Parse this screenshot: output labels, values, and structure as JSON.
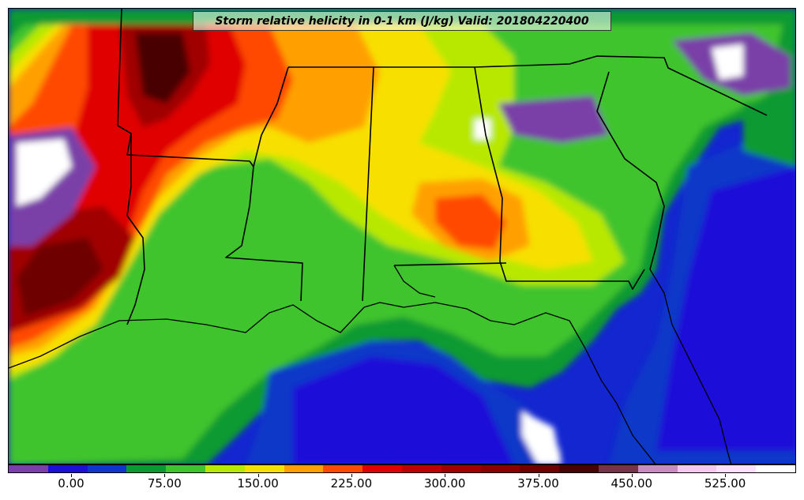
{
  "title": "Storm relative helicity in 0-1 km (J/kg) Valid: 2018042204​00",
  "colorbar": {
    "colors": [
      "#7a3fa8",
      "#1c10d8",
      "#0b38c8",
      "#0c9a30",
      "#3fc42e",
      "#b8e800",
      "#f7e000",
      "#ffa000",
      "#ff4a00",
      "#e00000",
      "#c00000",
      "#a00000",
      "#8b0000",
      "#6e0000",
      "#4a0000",
      "#7a3048",
      "#c88cc0",
      "#f4c8f0",
      "#ffe0fc",
      "#ffffff"
    ],
    "labels": [
      "0.00",
      "75.00",
      "150.00",
      "225.00",
      "300.00",
      "375.00",
      "450.00",
      "525.00"
    ]
  },
  "map": {
    "background_color": "#0c22c8",
    "water_color": "#1a2bd0",
    "border_color": "#000000"
  }
}
